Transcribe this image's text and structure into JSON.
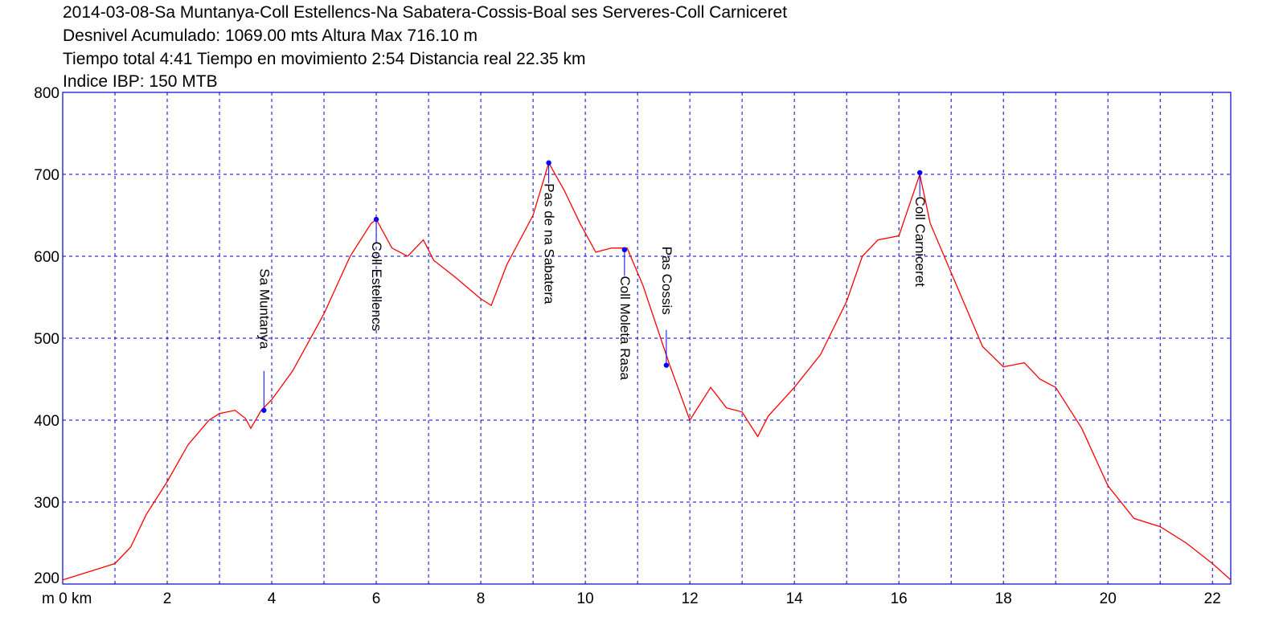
{
  "header": {
    "title": "2014-03-08-Sa Muntanya-Coll Estellencs-Na Sabatera-Cossis-Boal ses Serveres-Coll Carniceret",
    "line2": "Desnivel Acumulado: 1069.00 mts  Altura Max 716.10 m",
    "line3": "Tiempo total 4:41 Tiempo en movimiento 2:54 Distancia real 22.35 km",
    "line4": "Indice IBP: 150 MTB"
  },
  "colors": {
    "profile": "#ff0000",
    "grid": "#0000cc",
    "frame": "#0000cc",
    "waypoint": "#0000ff"
  },
  "chart_data": {
    "type": "line",
    "xlim": [
      0,
      22.35
    ],
    "ylim": [
      200,
      800
    ],
    "x_ticks": [
      2,
      4,
      6,
      8,
      10,
      12,
      14,
      16,
      18,
      20,
      22
    ],
    "x_tick_labels": [
      "2",
      "4",
      "6",
      "8",
      "10",
      "12",
      "14",
      "16",
      "18",
      "20",
      "22"
    ],
    "x_origin_label": "m 0 km",
    "y_ticks": [
      300,
      400,
      500,
      600,
      700,
      800
    ],
    "y_tick_labels": [
      "300",
      "400",
      "500",
      "600",
      "700",
      "800"
    ],
    "y_bottom_label": "200",
    "grid": true,
    "series": [
      {
        "x": [
          0,
          0.5,
          1.0,
          1.3,
          1.6,
          2.0,
          2.4,
          2.8,
          3.0,
          3.3,
          3.5,
          3.6,
          3.8,
          4.0,
          4.4,
          5.0,
          5.5,
          5.9,
          6.0,
          6.3,
          6.6,
          6.9,
          7.1,
          7.5,
          8.0,
          8.2,
          8.5,
          9.0,
          9.3,
          9.6,
          9.9,
          10.2,
          10.5,
          10.8,
          11.1,
          11.6,
          12.0,
          12.2,
          12.4,
          12.7,
          13.0,
          13.3,
          13.5,
          14.0,
          14.5,
          15.0,
          15.3,
          15.6,
          16.0,
          16.4,
          16.6,
          17.0,
          17.3,
          17.6,
          18.0,
          18.4,
          18.7,
          19.0,
          19.5,
          20.0,
          20.5,
          21.0,
          21.5,
          22.0,
          22.35
        ],
        "y": [
          205,
          215,
          225,
          245,
          285,
          325,
          370,
          400,
          408,
          412,
          402,
          390,
          412,
          425,
          460,
          530,
          600,
          640,
          645,
          610,
          600,
          620,
          595,
          575,
          548,
          540,
          590,
          650,
          714,
          680,
          640,
          605,
          610,
          610,
          565,
          470,
          400,
          420,
          440,
          415,
          410,
          380,
          405,
          440,
          480,
          545,
          600,
          620,
          625,
          700,
          640,
          580,
          535,
          490,
          465,
          470,
          450,
          440,
          390,
          320,
          280,
          270,
          250,
          225,
          205
        ]
      }
    ],
    "waypoints": [
      {
        "name": "Sa Muntanya",
        "x": 3.85,
        "y": 412,
        "label_top_y": 585,
        "label_bottom_y": 460
      },
      {
        "name": "Coll Estellencs",
        "x": 6.0,
        "y": 645,
        "label_top_y": 618,
        "label_bottom_y": 469
      },
      {
        "name": "Pas de na Sabatera",
        "x": 9.3,
        "y": 714,
        "label_top_y": 689,
        "label_bottom_y": 480
      },
      {
        "name": "Coll Moleta Rasa",
        "x": 10.75,
        "y": 608,
        "label_top_y": 576,
        "label_bottom_y": 406
      },
      {
        "name": "Pas Cossis",
        "x": 11.55,
        "y": 467,
        "label_top_y": 612,
        "label_bottom_y": 510
      },
      {
        "name": "Coll Carniceret",
        "x": 16.4,
        "y": 702,
        "label_top_y": 673,
        "label_bottom_y": 558
      }
    ]
  }
}
